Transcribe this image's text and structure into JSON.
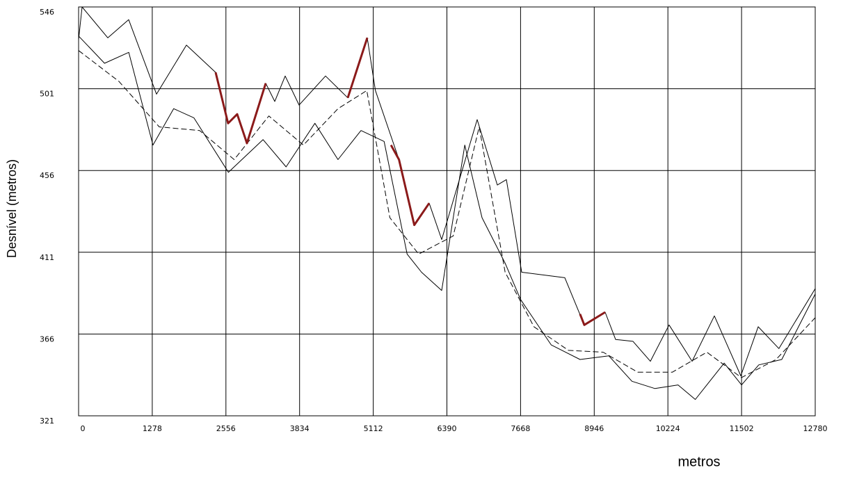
{
  "chart_data": {
    "type": "line",
    "y_label": "Desnível (metros)",
    "x_label": "metros",
    "xlim": [
      0,
      12780
    ],
    "xticks": [
      0,
      1278,
      2556,
      3834,
      5112,
      6390,
      7668,
      8946,
      10224,
      11502,
      12780
    ],
    "ylim": [
      321,
      546
    ],
    "yticks": [
      321,
      366,
      411,
      456,
      501,
      546
    ],
    "grid": true,
    "series": [
      {
        "color": "#000000",
        "line_width": 1,
        "dash": false,
        "x": [
          0,
          60,
          507,
          869,
          1352,
          1870,
          2377,
          2594,
          2751,
          2920,
          3246,
          3403,
          3584,
          3826,
          4284,
          4670,
          5008,
          5150,
          5559,
          5824,
          6082,
          6300,
          6915,
          7265,
          7422,
          7687,
          8436,
          8774,
          9136,
          9317,
          9618,
          9920,
          10245,
          10644,
          11030,
          11489,
          11790,
          12150,
          12780
        ],
        "values": [
          528,
          546,
          529,
          539,
          498,
          525,
          510,
          482,
          487,
          471,
          504,
          494,
          508,
          492,
          508,
          496,
          529,
          500,
          462,
          426,
          438,
          418,
          484,
          448,
          451,
          400,
          397,
          371,
          378,
          363,
          362,
          351,
          371,
          351,
          376,
          343,
          370,
          358,
          391
        ]
      },
      {
        "color": "#000000",
        "line_width": 1,
        "dash": false,
        "x": [
          0,
          450,
          870,
          1290,
          1650,
          2000,
          2600,
          3200,
          3600,
          4100,
          4500,
          4900,
          5300,
          5700,
          5950,
          6300,
          6700,
          7000,
          7400,
          7668,
          8200,
          8700,
          9200,
          9600,
          10000,
          10400,
          10700,
          11200,
          11502,
          11800,
          12200,
          12780
        ],
        "values": [
          530,
          515,
          521,
          470,
          490,
          485,
          455,
          473,
          458,
          482,
          462,
          478,
          472,
          410,
          400,
          390,
          470,
          430,
          405,
          385,
          360,
          352,
          354,
          340,
          336,
          338,
          330,
          350,
          338,
          349,
          352,
          388
        ]
      },
      {
        "color": "#000000",
        "line_width": 1,
        "dash": true,
        "x": [
          0,
          700,
          1400,
          2100,
          2700,
          3300,
          3900,
          4500,
          5000,
          5400,
          5900,
          6500,
          6950,
          7400,
          7900,
          8500,
          9100,
          9700,
          10300,
          10900,
          11500,
          12100,
          12780
        ],
        "values": [
          522,
          505,
          480,
          478,
          462,
          486,
          470,
          490,
          500,
          430,
          410,
          420,
          480,
          400,
          370,
          357,
          356,
          345,
          345,
          356,
          342,
          352,
          375
        ]
      },
      {
        "color": "#8b1a1a",
        "line_width": 3,
        "dash": false,
        "x": [
          2377,
          2594,
          2751,
          2920,
          3246,
          null,
          4670,
          5008,
          null,
          5420,
          5559,
          5824,
          6082,
          null,
          8700,
          8774,
          9136
        ],
        "values": [
          510,
          482,
          487,
          471,
          504,
          null,
          496,
          529,
          null,
          470,
          462,
          426,
          438,
          null,
          377,
          371,
          378
        ]
      }
    ]
  }
}
